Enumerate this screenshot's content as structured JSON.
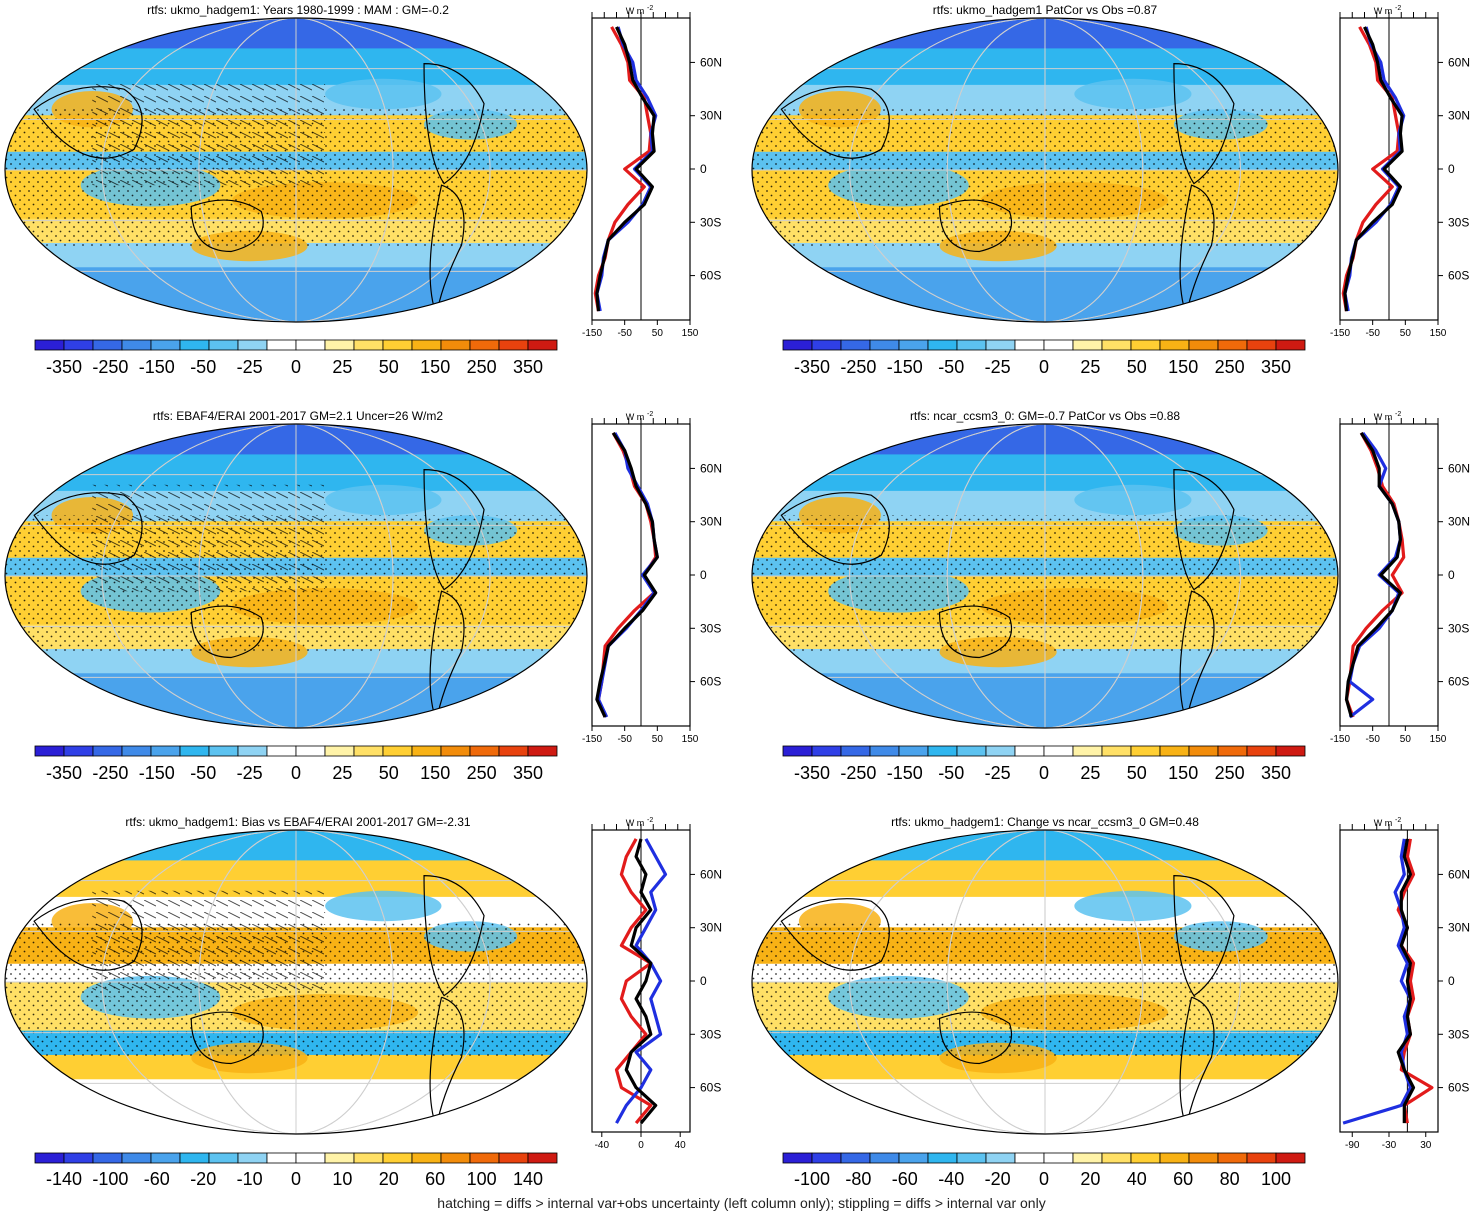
{
  "footer": "hatching = diffs > internal var+obs uncertainty (left column only); stippling = diffs > internal var only",
  "colors": {
    "scale": [
      "#2b1fd6",
      "#2f3fe6",
      "#3568e6",
      "#3f8ae8",
      "#4aa3ec",
      "#2fb6ef",
      "#5cc2f0",
      "#8fd3f3",
      "#ffffff",
      "#ffffff",
      "#fff3a8",
      "#ffe066",
      "#ffcf33",
      "#f8b215",
      "#f28c0a",
      "#f06a0a",
      "#e8420e",
      "#cf1a12"
    ],
    "obs": "#e21b1b",
    "model": "#1f2fe0",
    "alt": "#000000"
  },
  "chart_data": [
    {
      "type": "heatmap",
      "panel": "top-left",
      "title": "rtfs: ukmo_hadgem1: Years 1980-1999 : MAM : GM=-0.2",
      "colorbar_labels": [
        "-350",
        "-250",
        "-150",
        "-50",
        "-25",
        "0",
        "25",
        "50",
        "150",
        "250",
        "350"
      ],
      "zonal": {
        "unit_label": "W m",
        "unit_sup": "-2",
        "x_ticks": [
          "-150",
          "-50",
          "50",
          "150"
        ],
        "xlim": [
          -150,
          150
        ],
        "lat_labels": [
          "60N",
          "30N",
          "0",
          "30S",
          "60S"
        ],
        "lat_values": [
          60,
          30,
          0,
          -30,
          -60
        ],
        "lat": [
          80,
          70,
          60,
          50,
          40,
          30,
          20,
          10,
          0,
          -10,
          -20,
          -30,
          -40,
          -50,
          -60,
          -70,
          -80
        ],
        "series": [
          {
            "color": "obs",
            "values": [
              -90,
              -60,
              -40,
              -35,
              10,
              20,
              30,
              25,
              -50,
              10,
              -40,
              -80,
              -100,
              -110,
              -130,
              -140,
              -130
            ]
          },
          {
            "color": "model",
            "values": [
              -70,
              -55,
              -25,
              -15,
              20,
              45,
              30,
              35,
              -20,
              30,
              5,
              -40,
              -100,
              -115,
              -120,
              -135,
              -125
            ]
          },
          {
            "color": "alt",
            "values": [
              -75,
              -50,
              -35,
              -25,
              5,
              40,
              35,
              40,
              -15,
              35,
              10,
              -50,
              -100,
              -112,
              -125,
              -135,
              -130
            ]
          }
        ]
      }
    },
    {
      "type": "heatmap",
      "panel": "top-right",
      "title": "rtfs: ukmo_hadgem1 PatCor vs Obs =0.87",
      "colorbar_labels": [
        "-350",
        "-250",
        "-150",
        "-50",
        "-25",
        "0",
        "25",
        "50",
        "150",
        "250",
        "350"
      ],
      "zonal": {
        "unit_label": "W m",
        "unit_sup": "-2",
        "x_ticks": [
          "-150",
          "-50",
          "50",
          "150"
        ],
        "xlim": [
          -150,
          150
        ],
        "lat_labels": [
          "60N",
          "30N",
          "0",
          "30S",
          "60S"
        ],
        "lat_values": [
          60,
          30,
          0,
          -30,
          -60
        ],
        "lat": [
          80,
          70,
          60,
          50,
          40,
          30,
          20,
          10,
          0,
          -10,
          -20,
          -30,
          -40,
          -50,
          -60,
          -70,
          -80
        ],
        "series": [
          {
            "color": "obs",
            "values": [
              -90,
              -60,
              -40,
              -35,
              10,
              20,
              30,
              25,
              -50,
              10,
              -40,
              -80,
              -100,
              -110,
              -130,
              -140,
              -130
            ]
          },
          {
            "color": "model",
            "values": [
              -70,
              -55,
              -25,
              -15,
              20,
              45,
              30,
              35,
              -20,
              30,
              5,
              -40,
              -100,
              -115,
              -120,
              -135,
              -125
            ]
          },
          {
            "color": "alt",
            "values": [
              -75,
              -50,
              -35,
              -25,
              5,
              40,
              35,
              40,
              -15,
              35,
              10,
              -50,
              -100,
              -112,
              -125,
              -135,
              -130
            ]
          }
        ]
      }
    },
    {
      "type": "heatmap",
      "panel": "middle-left",
      "title": "rtfs: EBAF4/ERAI 2001-2017 GM=2.1 Uncer=26 W/m2",
      "colorbar_labels": [
        "-350",
        "-250",
        "-150",
        "-50",
        "-25",
        "0",
        "25",
        "50",
        "150",
        "250",
        "350"
      ],
      "zonal": {
        "unit_label": "W m",
        "unit_sup": "-2",
        "x_ticks": [
          "-150",
          "-50",
          "50",
          "150"
        ],
        "xlim": [
          -150,
          150
        ],
        "lat_labels": [
          "60N",
          "30N",
          "0",
          "30S",
          "60S"
        ],
        "lat_values": [
          60,
          30,
          0,
          -30,
          -60
        ],
        "lat": [
          80,
          70,
          60,
          50,
          40,
          30,
          20,
          10,
          0,
          -10,
          -20,
          -30,
          -40,
          -50,
          -60,
          -70,
          -80
        ],
        "series": [
          {
            "color": "obs",
            "values": [
              -85,
              -55,
              -35,
              -20,
              15,
              30,
              40,
              45,
              10,
              40,
              -20,
              -70,
              -110,
              -115,
              -120,
              -130,
              -110
            ]
          },
          {
            "color": "model",
            "values": [
              -80,
              -50,
              -40,
              -10,
              20,
              35,
              40,
              50,
              5,
              40,
              0,
              -45,
              -100,
              -110,
              -120,
              -130,
              -105
            ]
          },
          {
            "color": "alt",
            "values": [
              -85,
              -50,
              -30,
              -15,
              15,
              35,
              40,
              50,
              10,
              45,
              5,
              -50,
              -100,
              -112,
              -125,
              -135,
              -110
            ]
          }
        ]
      }
    },
    {
      "type": "heatmap",
      "panel": "middle-right",
      "title": "rtfs: ncar_ccsm3_0: GM=-0.7 PatCor vs Obs =0.88",
      "colorbar_labels": [
        "-350",
        "-250",
        "-150",
        "-50",
        "-25",
        "0",
        "25",
        "50",
        "150",
        "250",
        "350"
      ],
      "zonal": {
        "unit_label": "W m",
        "unit_sup": "-2",
        "x_ticks": [
          "-150",
          "-50",
          "50",
          "150"
        ],
        "xlim": [
          -150,
          150
        ],
        "lat_labels": [
          "60N",
          "30N",
          "0",
          "30S",
          "60S"
        ],
        "lat_values": [
          60,
          30,
          0,
          -30,
          -60
        ],
        "lat": [
          80,
          70,
          60,
          50,
          40,
          30,
          20,
          10,
          0,
          -10,
          -20,
          -30,
          -40,
          -50,
          -60,
          -70,
          -80
        ],
        "series": [
          {
            "color": "obs",
            "values": [
              -85,
              -55,
              -35,
              -20,
              15,
              30,
              40,
              45,
              10,
              40,
              -20,
              -70,
              -110,
              -115,
              -120,
              -130,
              -110
            ]
          },
          {
            "color": "model",
            "values": [
              -80,
              -40,
              -10,
              -30,
              10,
              30,
              35,
              20,
              -30,
              30,
              10,
              -30,
              -90,
              -110,
              -120,
              -50,
              -120
            ]
          },
          {
            "color": "alt",
            "values": [
              -85,
              -50,
              -30,
              -30,
              10,
              30,
              35,
              25,
              -25,
              35,
              10,
              -40,
              -95,
              -110,
              -125,
              -130,
              -115
            ]
          }
        ]
      }
    },
    {
      "type": "heatmap",
      "panel": "bottom-left",
      "title": "rtfs: ukmo_hadgem1: Bias vs EBAF4/ERAI 2001-2017 GM=-2.31",
      "colorbar_labels": [
        "-140",
        "-100",
        "-60",
        "-20",
        "-10",
        "0",
        "10",
        "20",
        "60",
        "100",
        "140"
      ],
      "zonal": {
        "unit_label": "W m",
        "unit_sup": "-2",
        "x_ticks": [
          "-40",
          "0",
          "40"
        ],
        "xlim": [
          -50,
          50
        ],
        "lat_labels": [
          "60N",
          "30N",
          "0",
          "30S",
          "60S"
        ],
        "lat_values": [
          60,
          30,
          0,
          -30,
          -60
        ],
        "lat": [
          80,
          70,
          60,
          50,
          40,
          30,
          20,
          10,
          0,
          -10,
          -20,
          -30,
          -40,
          -50,
          -60,
          -70,
          -80
        ],
        "series": [
          {
            "color": "obs",
            "values": [
              -5,
              -15,
              -20,
              -10,
              5,
              -10,
              -20,
              10,
              -15,
              -20,
              -10,
              5,
              -10,
              -25,
              -20,
              10,
              -5
            ]
          },
          {
            "color": "model",
            "values": [
              5,
              15,
              25,
              10,
              15,
              5,
              -5,
              10,
              20,
              10,
              15,
              20,
              -5,
              10,
              0,
              -15,
              -25
            ]
          },
          {
            "color": "alt",
            "values": [
              0,
              -5,
              5,
              0,
              10,
              -5,
              -10,
              10,
              5,
              -5,
              5,
              10,
              -10,
              -15,
              -5,
              15,
              0
            ]
          }
        ]
      }
    },
    {
      "type": "heatmap",
      "panel": "bottom-right",
      "title": "rtfs: ukmo_hadgem1: Change vs ncar_ccsm3_0 GM=0.48",
      "colorbar_labels": [
        "-100",
        "-80",
        "-60",
        "-40",
        "-20",
        "0",
        "20",
        "40",
        "60",
        "80",
        "100"
      ],
      "zonal": {
        "unit_label": "W m",
        "unit_sup": "-2",
        "x_ticks": [
          "-90",
          "-30",
          "30"
        ],
        "xlim": [
          -110,
          50
        ],
        "lat_labels": [
          "60N",
          "30N",
          "0",
          "30S",
          "60S"
        ],
        "lat_values": [
          60,
          30,
          0,
          -30,
          -60
        ],
        "lat": [
          80,
          70,
          60,
          50,
          40,
          30,
          20,
          10,
          0,
          -10,
          -20,
          -30,
          -40,
          -50,
          -60,
          -70,
          -80
        ],
        "series": [
          {
            "color": "obs",
            "values": [
              5,
              0,
              10,
              -5,
              -15,
              0,
              -10,
              10,
              5,
              10,
              0,
              5,
              -5,
              -10,
              40,
              -5,
              0
            ]
          },
          {
            "color": "model",
            "values": [
              -5,
              -10,
              -5,
              -20,
              -10,
              -5,
              -15,
              0,
              -10,
              5,
              -5,
              0,
              -10,
              -5,
              5,
              -10,
              -105
            ]
          },
          {
            "color": "alt",
            "values": [
              0,
              -5,
              5,
              -10,
              -10,
              0,
              -10,
              5,
              0,
              5,
              0,
              5,
              -15,
              -5,
              10,
              -5,
              -5
            ]
          }
        ]
      }
    }
  ]
}
